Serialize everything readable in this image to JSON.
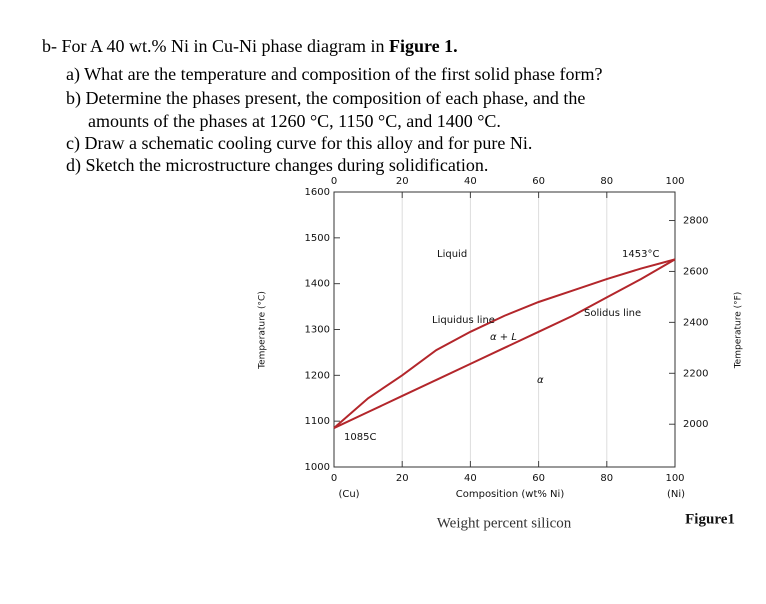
{
  "question": {
    "intro": "b- For A 40 wt.% Ni in Cu-Ni phase diagram in ",
    "intro_ref": "Figure 1.",
    "lines": [
      "a) What are the temperature and composition of the first solid phase form?",
      "b) Determine the phases present, the composition of each phase, and the",
      "amounts of the phases at 1260 °C, 1150 °C, and 1400 °C.",
      "c) Draw a schematic cooling curve for this alloy and for pure Ni.",
      "d) Sketch the microstructure changes during solidification."
    ]
  },
  "chart_data": {
    "type": "line",
    "xlabel": "Composition (wt% Ni)",
    "xlabel_alt": "Weight percent silicon",
    "ylabel": "Temperature (°C)",
    "y2label": "Temperature (°F)",
    "caption": "Figure1",
    "x": [
      0,
      10,
      20,
      30,
      40,
      50,
      60,
      70,
      80,
      90,
      100
    ],
    "series": [
      {
        "name": "Liquidus line",
        "color": "#b3262b",
        "values": [
          1085,
          1150,
          1200,
          1255,
          1295,
          1330,
          1360,
          1385,
          1410,
          1433,
          1453
        ]
      },
      {
        "name": "Solidus line",
        "color": "#b3262b",
        "values": [
          1085,
          1120,
          1155,
          1190,
          1225,
          1260,
          1295,
          1330,
          1370,
          1410,
          1453
        ]
      }
    ],
    "xlim": [
      0,
      100
    ],
    "xticks": [
      0,
      20,
      40,
      60,
      80,
      100
    ],
    "ylim": [
      1000,
      1600
    ],
    "yticks": [
      1000,
      1100,
      1200,
      1300,
      1400,
      1500,
      1600
    ],
    "y2lim": [
      1832,
      2912
    ],
    "y2ticks": [
      2000,
      2200,
      2400,
      2600,
      2800
    ],
    "annotations": [
      "Liquid",
      "α + L",
      "α",
      "1453°C",
      "1085C",
      "(Cu)",
      "(Ni)"
    ],
    "grid": true
  }
}
